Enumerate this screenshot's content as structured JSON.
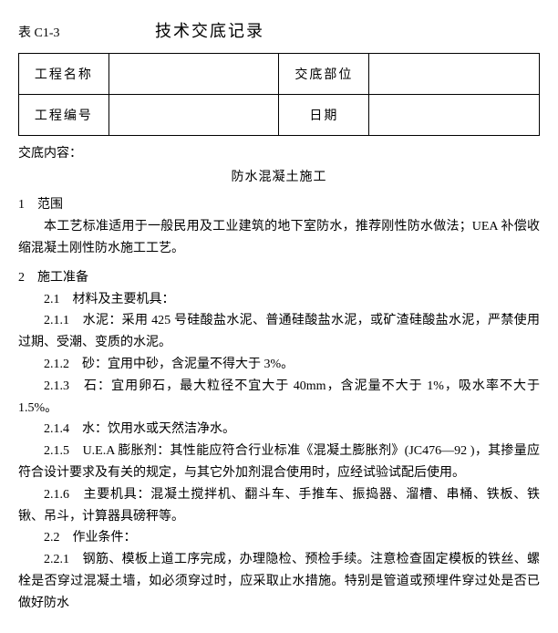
{
  "meta": {
    "table_code": "表 C1-3",
    "title": "技术交底记录"
  },
  "info": {
    "project_name_label": "工程名称",
    "project_name_value": "",
    "part_label": "交底部位",
    "part_value": "",
    "project_no_label": "工程编号",
    "project_no_value": "",
    "date_label": "日期",
    "date_value": ""
  },
  "body": {
    "content_label": "交底内容：",
    "sub_title": "防水混凝土施工",
    "sec1_heading": "1　范围",
    "sec1_para": "本工艺标准适用于一般民用及工业建筑的地下室防水，推荐刚性防水做法；UEA 补偿收缩混凝土刚性防水施工工艺。",
    "sec2_heading": "2　施工准备",
    "sec2_1": "2.1　材料及主要机具：",
    "sec2_1_1": "2.1.1　水泥：采用 425 号硅酸盐水泥、普通硅酸盐水泥，或矿渣硅酸盐水泥，严禁使用过期、受潮、变质的水泥。",
    "sec2_1_2": "2.1.2　砂：宜用中砂，含泥量不得大于 3%。",
    "sec2_1_3": "2.1.3　石：宜用卵石，最大粒径不宜大于 40mm，含泥量不大于 1%，吸水率不大于 1.5%。",
    "sec2_1_4": "2.1.4　水：饮用水或天然洁净水。",
    "sec2_1_5": "2.1.5　U.E.A 膨胀剂：其性能应符合行业标准《混凝土膨胀剂》(JC476—92 )，其掺量应符合设计要求及有关的规定，与其它外加剂混合使用时，应经试验试配后使用。",
    "sec2_1_6": "2.1.6　主要机具：混凝土搅拌机、翻斗车、手推车、振捣器、溜槽、串桶、铁板、铁锹、吊斗，计算器具磅秤等。",
    "sec2_2": "2.2　作业条件：",
    "sec2_2_1": "2.2.1　钢筋、模板上道工序完成，办理隐检、预检手续。注意检查固定模板的铁丝、螺栓是否穿过混凝土墙，如必须穿过时，应采取止水措施。特别是管道或预埋件穿过处是否已做好防水"
  },
  "styling": {
    "background_color": "#ffffff",
    "text_color": "#000000",
    "border_color": "#000000",
    "font_family": "SimSun",
    "title_fontsize": 18,
    "body_fontsize": 14,
    "line_height": 1.7,
    "table_border_width": 1.5,
    "table_cell_padding": 12,
    "col_widths": {
      "label": 100,
      "value": 190
    }
  }
}
